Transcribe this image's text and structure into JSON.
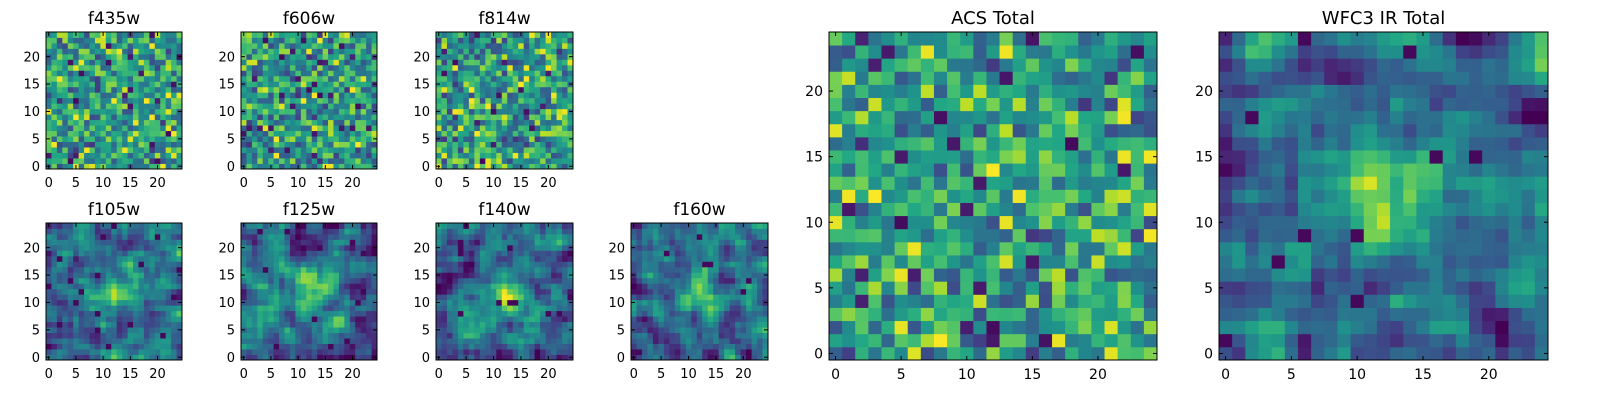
{
  "figure": {
    "description_colormap": "viridis",
    "axis_range": [
      -0.5,
      24.5
    ]
  },
  "chart_data": [
    {
      "type": "heatmap",
      "title": "f435w",
      "grid_size": 25,
      "xticks": [
        "0",
        "5",
        "10",
        "15",
        "20"
      ],
      "yticks": [
        "0",
        "5",
        "10",
        "15",
        "20"
      ],
      "pattern": "noise",
      "seed": 11
    },
    {
      "type": "heatmap",
      "title": "f606w",
      "grid_size": 25,
      "xticks": [
        "0",
        "5",
        "10",
        "15",
        "20"
      ],
      "yticks": [
        "0",
        "5",
        "10",
        "15",
        "20"
      ],
      "pattern": "noise",
      "seed": 23
    },
    {
      "type": "heatmap",
      "title": "f814w",
      "grid_size": 25,
      "xticks": [
        "0",
        "5",
        "10",
        "15",
        "20"
      ],
      "yticks": [
        "0",
        "5",
        "10",
        "15",
        "20"
      ],
      "pattern": "noise",
      "seed": 37
    },
    {
      "type": "heatmap",
      "title": "f105w",
      "grid_size": 25,
      "xticks": [
        "0",
        "5",
        "10",
        "15",
        "20"
      ],
      "yticks": [
        "0",
        "5",
        "10",
        "15",
        "20"
      ],
      "pattern": "smooth-source",
      "source_center": [
        13,
        12
      ],
      "seed": 41
    },
    {
      "type": "heatmap",
      "title": "f125w",
      "grid_size": 25,
      "xticks": [
        "0",
        "5",
        "10",
        "15",
        "20"
      ],
      "yticks": [
        "0",
        "5",
        "10",
        "15",
        "20"
      ],
      "pattern": "smooth-source",
      "source_center": [
        13,
        12
      ],
      "seed": 53
    },
    {
      "type": "heatmap",
      "title": "f140w",
      "grid_size": 25,
      "xticks": [
        "0",
        "5",
        "10",
        "15",
        "20"
      ],
      "yticks": [
        "0",
        "5",
        "10",
        "15",
        "20"
      ],
      "pattern": "smooth-source",
      "source_center": [
        12,
        11
      ],
      "seed": 67
    },
    {
      "type": "heatmap",
      "title": "f160w",
      "grid_size": 25,
      "xticks": [
        "0",
        "5",
        "10",
        "15",
        "20"
      ],
      "yticks": [
        "0",
        "5",
        "10",
        "15",
        "20"
      ],
      "pattern": "smooth-source",
      "source_center": [
        12,
        12
      ],
      "seed": 79
    },
    {
      "type": "heatmap",
      "title": "ACS Total",
      "grid_size": 25,
      "xticks": [
        "0",
        "5",
        "10",
        "15",
        "20"
      ],
      "yticks": [
        "0",
        "5",
        "10",
        "15",
        "20"
      ],
      "pattern": "noise",
      "seed": 97
    },
    {
      "type": "heatmap",
      "title": "WFC3 IR Total",
      "grid_size": 25,
      "xticks": [
        "0",
        "5",
        "10",
        "15",
        "20"
      ],
      "yticks": [
        "0",
        "5",
        "10",
        "15",
        "20"
      ],
      "pattern": "smooth-source",
      "source_center": [
        12,
        12
      ],
      "seed": 113
    }
  ]
}
